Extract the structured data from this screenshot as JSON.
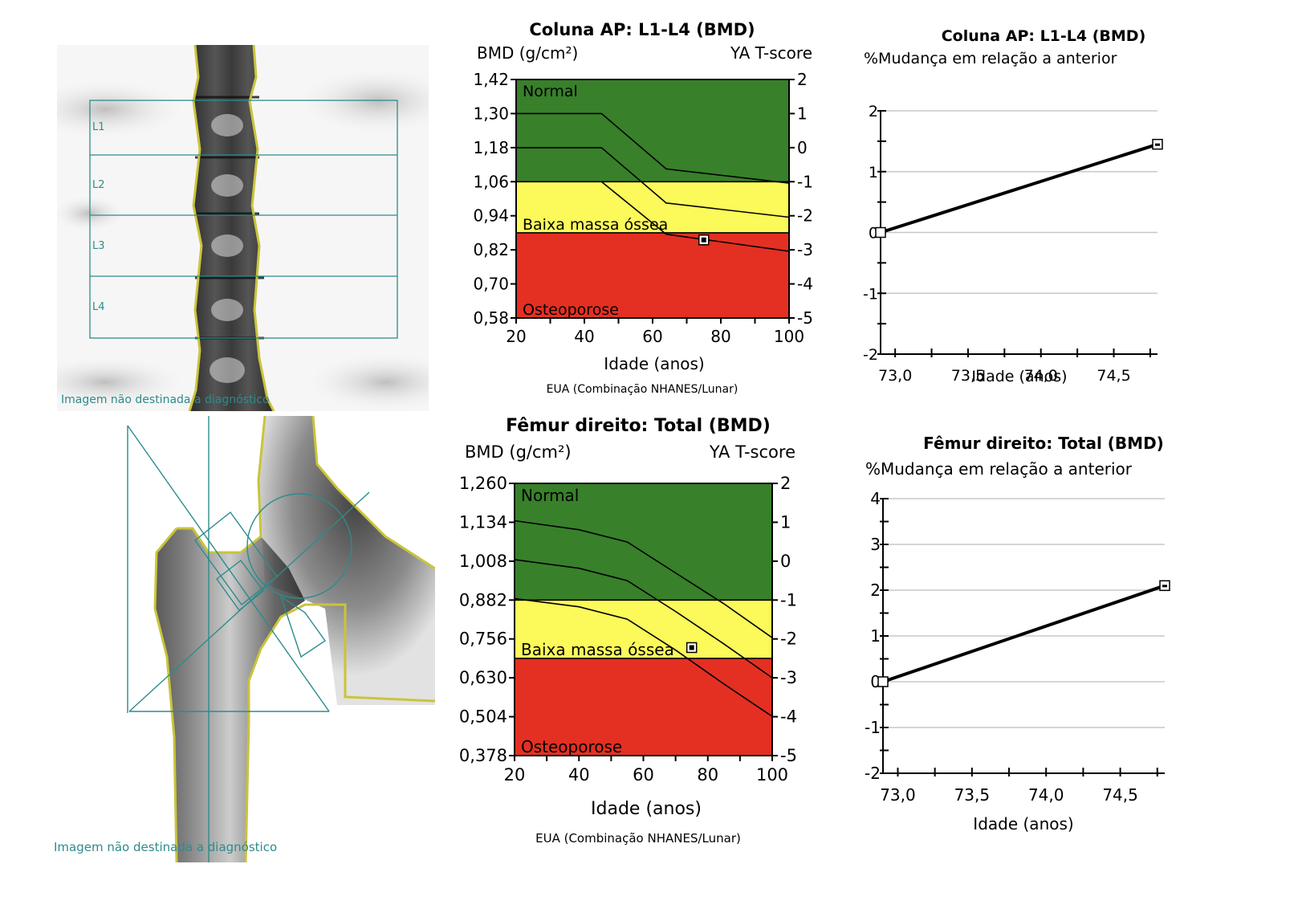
{
  "colors": {
    "normal": "#38802a",
    "low_bone_mass": "#fcf95a",
    "osteoporosis": "#e33022",
    "roi_lines": "#2e8b8b",
    "bone_edge": "#c9c43a",
    "gridline": "#c8c8c8"
  },
  "spine_image": {
    "regions": [
      "L1",
      "L2",
      "L3",
      "L4"
    ],
    "caption": "Imagem não destinada a diagnóstico"
  },
  "femur_image": {
    "caption": "Imagem não destinada a diagnóstico"
  },
  "chart_data": [
    {
      "id": "spine_bmd",
      "type": "area",
      "title": "Coluna AP: L1-L4 (BMD)",
      "ylabel": "BMD (g/cm²)",
      "y2label": "YA T-score",
      "xlabel": "Idade (anos)",
      "footnote": "EUA  (Combinação NHANES/Lunar)",
      "x_ticks": [
        "20",
        "40",
        "60",
        "80",
        "100"
      ],
      "xlim": [
        20,
        100
      ],
      "y_ticks": [
        "1,42",
        "1,30",
        "1,18",
        "1,06",
        "0,94",
        "0,82",
        "0,70",
        "0,58"
      ],
      "ylim": [
        0.58,
        1.42
      ],
      "y2_ticks": [
        "2",
        "1",
        "0",
        "-1",
        "-2",
        "-3",
        "-4",
        "-5"
      ],
      "bands": [
        {
          "label": "Normal",
          "from": 1.06,
          "to": 1.42,
          "color": "#38802a"
        },
        {
          "label": "Baixa massa óssea",
          "from": 0.88,
          "to": 1.06,
          "color": "#fcf95a"
        },
        {
          "label": "Osteoporose",
          "from": 0.58,
          "to": 0.88,
          "color": "#e33022"
        }
      ],
      "reference_curves": [
        {
          "name": "+1 SD",
          "points": [
            [
              20,
              1.3
            ],
            [
              45,
              1.3
            ],
            [
              64,
              1.105
            ],
            [
              100,
              1.055
            ]
          ]
        },
        {
          "name": "mean",
          "points": [
            [
              20,
              1.18
            ],
            [
              45,
              1.18
            ],
            [
              64,
              0.985
            ],
            [
              100,
              0.935
            ]
          ]
        },
        {
          "name": "-1 SD",
          "points": [
            [
              45,
              1.06
            ],
            [
              64,
              0.875
            ],
            [
              100,
              0.815
            ]
          ]
        }
      ],
      "patient_point": {
        "age": 75,
        "bmd": 0.855
      }
    },
    {
      "id": "spine_change",
      "type": "line",
      "title": "Coluna AP: L1-L4  (BMD)",
      "ylabel": "%Mudança em relação a anterior",
      "xlabel": "Idade (anos)",
      "x_ticks": [
        "73,0",
        "73,5",
        "74,0",
        "74,5"
      ],
      "xlim": [
        72.9,
        74.8
      ],
      "y_ticks": [
        "2",
        "1",
        "0",
        "-1",
        "-2"
      ],
      "ylim": [
        -2,
        2
      ],
      "grid": true,
      "series": [
        {
          "name": "%Mudança",
          "x": [
            72.9,
            74.8
          ],
          "y": [
            0,
            1.45
          ]
        }
      ]
    },
    {
      "id": "femur_bmd",
      "type": "area",
      "title": "Fêmur direito: Total (BMD)",
      "ylabel": "BMD (g/cm²)",
      "y2label": "YA T-score",
      "xlabel": "Idade (anos)",
      "footnote": "EUA  (Combinação NHANES/Lunar)",
      "x_ticks": [
        "20",
        "40",
        "60",
        "80",
        "100"
      ],
      "xlim": [
        20,
        100
      ],
      "y_ticks": [
        "1,260",
        "1,134",
        "1,008",
        "0,882",
        "0,756",
        "0,630",
        "0,504",
        "0,378"
      ],
      "ylim": [
        0.378,
        1.26
      ],
      "y2_ticks": [
        "2",
        "1",
        "0",
        "-1",
        "-2",
        "-3",
        "-4",
        "-5"
      ],
      "bands": [
        {
          "label": "Normal",
          "from": 0.882,
          "to": 1.26,
          "color": "#38802a"
        },
        {
          "label": "Baixa massa óssea",
          "from": 0.693,
          "to": 0.882,
          "color": "#fcf95a"
        },
        {
          "label": "Osteoporose",
          "from": 0.378,
          "to": 0.693,
          "color": "#e33022"
        }
      ],
      "reference_curves": [
        {
          "name": "+1 SD",
          "points": [
            [
              20,
              1.139
            ],
            [
              40,
              1.11
            ],
            [
              55,
              1.07
            ],
            [
              70,
              0.97
            ],
            [
              85,
              0.87
            ],
            [
              100,
              0.76
            ]
          ]
        },
        {
          "name": "mean",
          "points": [
            [
              20,
              1.013
            ],
            [
              40,
              0.985
            ],
            [
              55,
              0.945
            ],
            [
              70,
              0.845
            ],
            [
              85,
              0.74
            ],
            [
              100,
              0.63
            ]
          ]
        },
        {
          "name": "-1 SD",
          "points": [
            [
              20,
              0.887
            ],
            [
              40,
              0.86
            ],
            [
              55,
              0.82
            ],
            [
              70,
              0.72
            ],
            [
              85,
              0.61
            ],
            [
              100,
              0.505
            ]
          ]
        }
      ],
      "patient_point": {
        "age": 75,
        "bmd": 0.728
      }
    },
    {
      "id": "femur_change",
      "type": "line",
      "title": "Fêmur direito: Total  (BMD)",
      "ylabel": "%Mudança em relação a anterior",
      "xlabel": "Idade (anos)",
      "x_ticks": [
        "73,0",
        "73,5",
        "74,0",
        "74,5"
      ],
      "xlim": [
        72.9,
        74.8
      ],
      "y_ticks": [
        "4",
        "3",
        "2",
        "1",
        "0",
        "-1",
        "-2"
      ],
      "ylim": [
        -2,
        4
      ],
      "grid": true,
      "series": [
        {
          "name": "%Mudança",
          "x": [
            72.9,
            74.8
          ],
          "y": [
            0,
            2.1
          ]
        }
      ]
    }
  ]
}
